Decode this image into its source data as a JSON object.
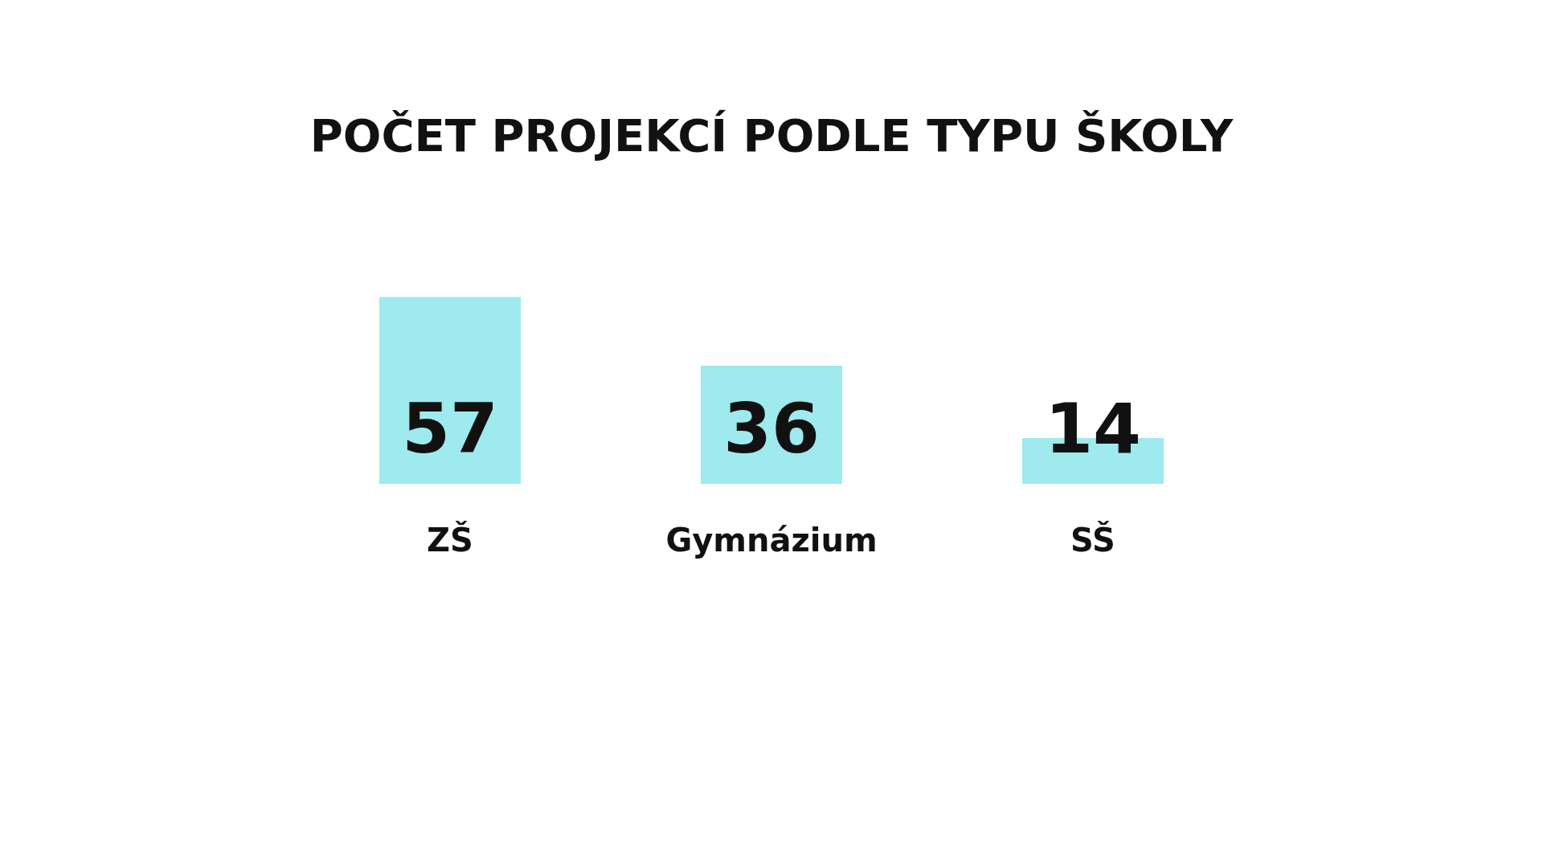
{
  "chart_data": {
    "type": "bar",
    "title": "POČET PROJEKCÍ PODLE TYPU ŠKOLY",
    "categories": [
      "ZŠ",
      "Gymnázium",
      "SŠ"
    ],
    "values": [
      57,
      36,
      14
    ],
    "color": "#9eeaee",
    "data_labels": true,
    "grid": false,
    "legend": false
  }
}
